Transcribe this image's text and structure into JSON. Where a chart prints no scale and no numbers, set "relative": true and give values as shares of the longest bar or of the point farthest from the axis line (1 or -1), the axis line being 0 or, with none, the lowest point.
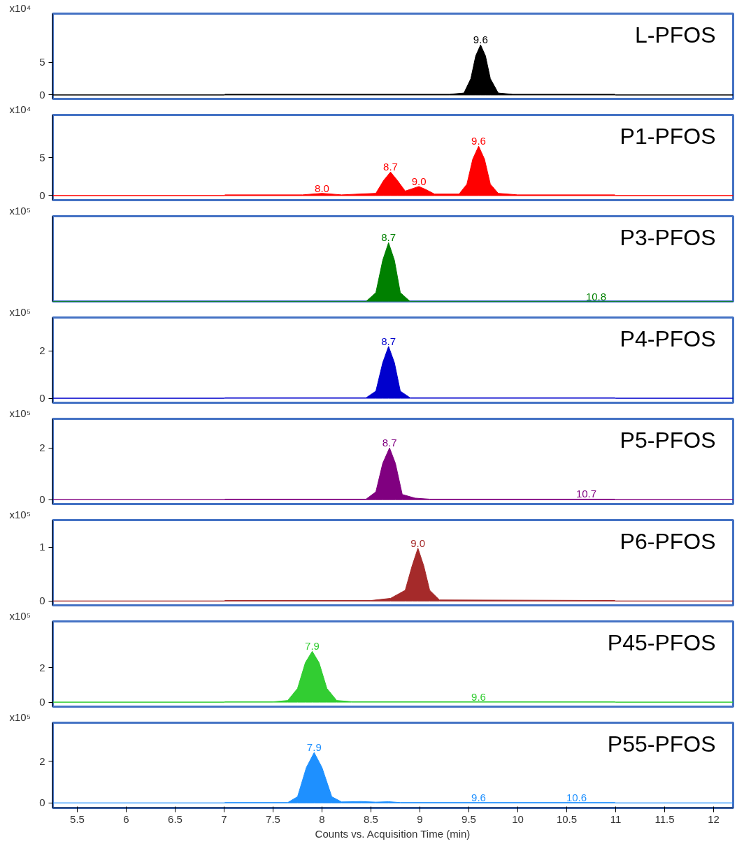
{
  "chart_data": [
    {
      "type": "area",
      "title": "L-PFOS",
      "ylabel": "x10⁴",
      "color": "#000000",
      "xlim": [
        5.25,
        12.2
      ],
      "ylim": [
        -0.6,
        12.5
      ],
      "yticks": [
        0,
        5
      ],
      "tick_labels": "y",
      "x": [
        5.25,
        7.0,
        7.01,
        9.3,
        9.45,
        9.52,
        9.57,
        9.62,
        9.67,
        9.72,
        9.8,
        9.95,
        10.99,
        11.0,
        12.2
      ],
      "values": [
        0,
        0,
        0.1,
        0.1,
        0.3,
        2.5,
        6.0,
        7.7,
        6.0,
        2.5,
        0.3,
        0.1,
        0.1,
        0,
        0
      ],
      "annotations": [
        {
          "text": "9.6",
          "x": 9.62,
          "y": 7.7
        }
      ]
    },
    {
      "type": "area",
      "title": "P1-PFOS",
      "ylabel": "x10⁴",
      "color": "#ff0000",
      "xlim": [
        5.25,
        12.2
      ],
      "ylim": [
        -0.6,
        10.6
      ],
      "yticks": [
        0,
        5
      ],
      "tick_labels": "y",
      "x": [
        5.25,
        7.0,
        7.01,
        7.8,
        8.0,
        8.2,
        8.55,
        8.63,
        8.7,
        8.77,
        8.85,
        8.92,
        8.99,
        9.06,
        9.15,
        9.4,
        9.48,
        9.54,
        9.6,
        9.66,
        9.72,
        9.8,
        10.0,
        10.99,
        11.0,
        12.2
      ],
      "values": [
        0,
        0,
        0.1,
        0.1,
        0.3,
        0.1,
        0.3,
        2.0,
        3.1,
        2.0,
        0.6,
        0.9,
        1.2,
        0.8,
        0.2,
        0.2,
        1.5,
        4.8,
        6.5,
        4.8,
        1.5,
        0.3,
        0.1,
        0.1,
        0,
        0
      ],
      "annotations": [
        {
          "text": "8.0",
          "x": 8.0,
          "y": 0.3
        },
        {
          "text": "8.7",
          "x": 8.7,
          "y": 3.1
        },
        {
          "text": "9.0",
          "x": 8.99,
          "y": 1.2
        },
        {
          "text": "9.6",
          "x": 9.6,
          "y": 6.5
        }
      ]
    },
    {
      "type": "area",
      "title": "P3-PFOS",
      "ylabel": "x10⁵",
      "color": "#008000",
      "xlim": [
        5.25,
        12.2
      ],
      "relative": true,
      "tick_labels": false,
      "x": [
        5.25,
        7.0,
        7.01,
        8.45,
        8.55,
        8.62,
        8.68,
        8.74,
        8.8,
        8.9,
        10.99,
        11.0,
        12.2
      ],
      "values": [
        0,
        0,
        0,
        0,
        0.15,
        0.7,
        1.0,
        0.7,
        0.15,
        0,
        0,
        0,
        0
      ],
      "annotations": [
        {
          "text": "8.7",
          "x": 8.68,
          "y": 1.0
        },
        {
          "text": "10.8",
          "x": 10.8,
          "y": 0
        }
      ]
    },
    {
      "type": "area",
      "title": "P4-PFOS",
      "ylabel": "x10⁵",
      "color": "#0000cd",
      "xlim": [
        5.25,
        12.2
      ],
      "ylim": [
        -0.19,
        3.41
      ],
      "yticks": [
        0,
        2
      ],
      "tick_labels": "y",
      "x": [
        5.25,
        7.0,
        7.01,
        8.45,
        8.55,
        8.62,
        8.68,
        8.74,
        8.8,
        8.9,
        10.99,
        11.0,
        12.2
      ],
      "values": [
        0,
        0,
        0.02,
        0.02,
        0.3,
        1.5,
        2.19,
        1.5,
        0.3,
        0.02,
        0.02,
        0,
        0
      ],
      "annotations": [
        {
          "text": "8.7",
          "x": 8.68,
          "y": 2.19
        }
      ]
    },
    {
      "type": "area",
      "title": "P5-PFOS",
      "ylabel": "x10⁵",
      "color": "#800080",
      "xlim": [
        5.25,
        12.2
      ],
      "ylim": [
        -0.17,
        3.12
      ],
      "yticks": [
        0,
        2
      ],
      "tick_labels": "y",
      "x": [
        5.25,
        7.0,
        7.01,
        8.45,
        8.55,
        8.62,
        8.69,
        8.75,
        8.82,
        8.95,
        9.1,
        10.99,
        11.0,
        12.2
      ],
      "values": [
        0,
        0,
        0.02,
        0.02,
        0.3,
        1.4,
        2.0,
        1.4,
        0.2,
        0.06,
        0.02,
        0.02,
        0,
        0
      ],
      "annotations": [
        {
          "text": "8.7",
          "x": 8.69,
          "y": 2.0
        },
        {
          "text": "10.7",
          "x": 10.7,
          "y": 0.02
        }
      ]
    },
    {
      "type": "area",
      "title": "P6-PFOS",
      "ylabel": "x10⁵",
      "color": "#a52a2a",
      "xlim": [
        5.25,
        12.2
      ],
      "ylim": [
        -0.08,
        1.5
      ],
      "yticks": [
        0,
        1
      ],
      "tick_labels": "y",
      "x": [
        5.25,
        7.0,
        7.01,
        8.5,
        8.7,
        8.85,
        8.92,
        8.98,
        9.04,
        9.1,
        9.2,
        10.99,
        11.0,
        12.2
      ],
      "values": [
        0,
        0,
        0.01,
        0.01,
        0.05,
        0.2,
        0.65,
        0.98,
        0.65,
        0.2,
        0.02,
        0.01,
        0,
        0
      ],
      "annotations": [
        {
          "text": "9.0",
          "x": 8.98,
          "y": 0.98
        }
      ]
    },
    {
      "type": "area",
      "title": "P45-PFOS",
      "ylabel": "x10⁵",
      "color": "#32cd32",
      "xlim": [
        5.25,
        12.2
      ],
      "ylim": [
        -0.26,
        4.7
      ],
      "yticks": [
        0,
        2
      ],
      "tick_labels": "y",
      "x": [
        5.25,
        7.0,
        7.01,
        7.5,
        7.65,
        7.75,
        7.83,
        7.9,
        7.97,
        8.05,
        8.15,
        8.3,
        10.99,
        11.0,
        12.2
      ],
      "values": [
        0,
        0,
        0.02,
        0.02,
        0.1,
        0.8,
        2.3,
        2.96,
        2.3,
        0.8,
        0.1,
        0.03,
        0.02,
        0,
        0
      ],
      "annotations": [
        {
          "text": "7.9",
          "x": 7.9,
          "y": 2.96
        },
        {
          "text": "9.6",
          "x": 9.6,
          "y": 0.02
        }
      ]
    },
    {
      "type": "area",
      "title": "P55-PFOS",
      "ylabel": "x10⁵",
      "xlabel": "Counts vs. Acquisition Time (min)",
      "color": "#1e90ff",
      "xlim": [
        5.25,
        12.2
      ],
      "ylim": [
        -0.24,
        3.85
      ],
      "yticks": [
        0,
        2
      ],
      "xticks": [
        5.5,
        6,
        6.5,
        7,
        7.5,
        8,
        8.5,
        9,
        9.5,
        10,
        10.5,
        11,
        11.5,
        12
      ],
      "x": [
        5.25,
        7.0,
        7.01,
        7.65,
        7.75,
        7.84,
        7.92,
        8.0,
        8.1,
        8.2,
        8.4,
        8.55,
        8.68,
        8.8,
        10.99,
        11.0,
        12.2
      ],
      "values": [
        0,
        0,
        0.02,
        0.02,
        0.3,
        1.7,
        2.42,
        1.7,
        0.3,
        0.05,
        0.07,
        0.04,
        0.06,
        0.02,
        0.02,
        0,
        0
      ],
      "annotations": [
        {
          "text": "7.9",
          "x": 7.92,
          "y": 2.42
        },
        {
          "text": "9.6",
          "x": 9.6,
          "y": 0.02
        },
        {
          "text": "10.6",
          "x": 10.6,
          "y": 0.02
        }
      ]
    }
  ]
}
